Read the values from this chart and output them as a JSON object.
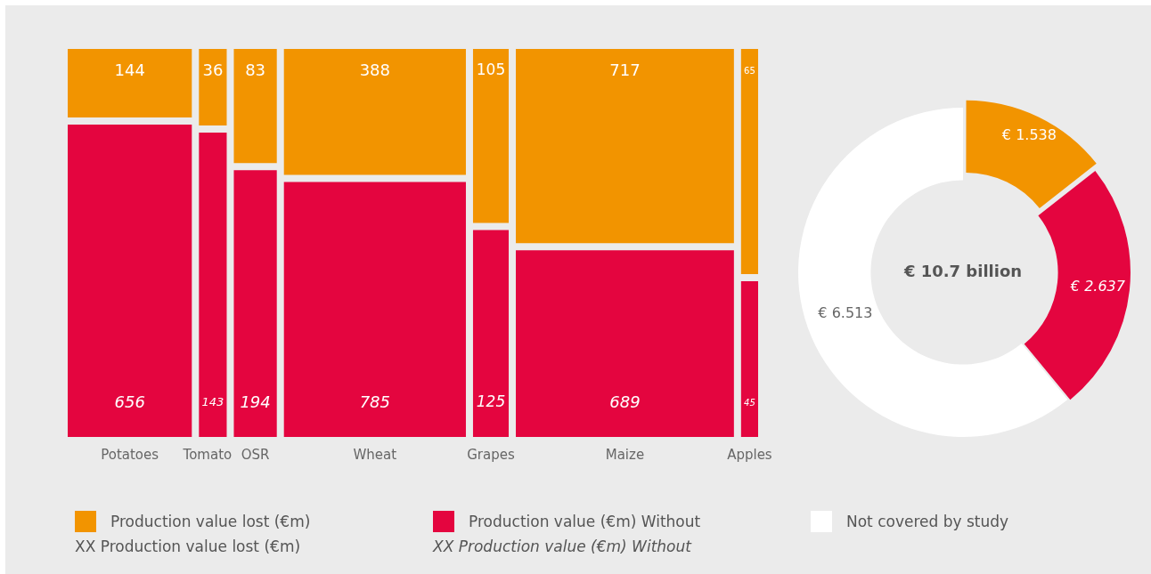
{
  "chart_data": [
    {
      "type": "other",
      "data_labels": true,
      "categories": [
        "Potatoes",
        "Tomato",
        "OSR",
        "Wheat",
        "Grapes",
        "Maize",
        "Apples"
      ],
      "series": [
        {
          "color": "#e4053f",
          "values": [
            656,
            143,
            194,
            785,
            125,
            689,
            45
          ]
        },
        {
          "color": "#f29400",
          "values": [
            144,
            36,
            83,
            388,
            105,
            717,
            65
          ]
        }
      ],
      "annotations": [
        "XX Production value lost (€m)",
        "XX Production value (€m) Without"
      ]
    },
    {
      "type": "donut",
      "legend": "bottom",
      "categories": [
        "Production value lost (€m)",
        "Production value (€m) Without",
        "Not covered by study"
      ],
      "values": [
        1.538,
        2.637,
        6.513
      ],
      "colors": [
        "#f29400",
        "#e4053f",
        "#ffffff"
      ],
      "value_labels": [
        "€ 1.538",
        "€ 2.637",
        "€ 6.513"
      ],
      "annotations": [
        "€ 10.7 billion"
      ]
    }
  ]
}
